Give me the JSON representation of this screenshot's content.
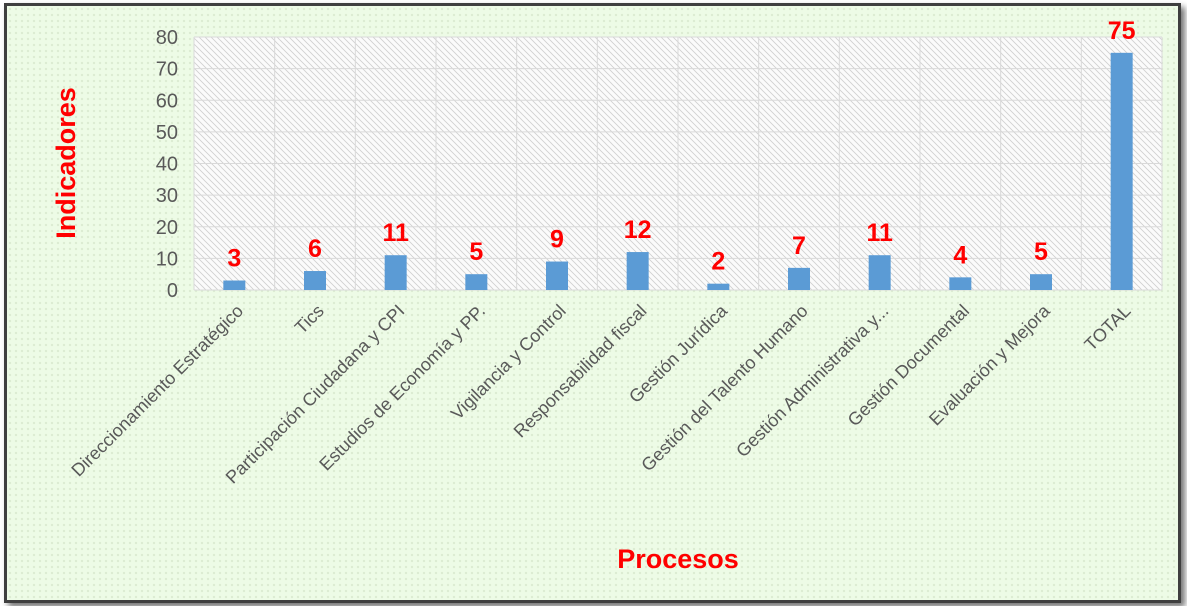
{
  "chart_data": {
    "type": "bar",
    "title": "",
    "xlabel": "Procesos",
    "ylabel": "Indicadores",
    "ylim": [
      0,
      80
    ],
    "yticks": [
      0,
      10,
      20,
      30,
      40,
      50,
      60,
      70,
      80
    ],
    "grid": true,
    "legend": "none",
    "categories": [
      "Direccionamiento Estratégico",
      "Tics",
      "Participación Ciudadana y CPI",
      "Estudios de Economía y PP.",
      "Vigilancia y Control",
      "Responsabilidad fiscal",
      "Gestión Jurídica",
      "Gestión del Talento Humano",
      "Gestión Administrativa y...",
      "Gestión Documental",
      "Evaluación y Mejora",
      "TOTAL"
    ],
    "values": [
      3,
      6,
      11,
      5,
      9,
      12,
      2,
      7,
      11,
      4,
      5,
      75
    ],
    "colors": {
      "bar": "#5b9bd5",
      "data_label": "#ff0000",
      "axis_title": "#ff0000",
      "tick_text": "#595959",
      "grid": "#d9d9d9",
      "background": "#edfbe6"
    }
  }
}
